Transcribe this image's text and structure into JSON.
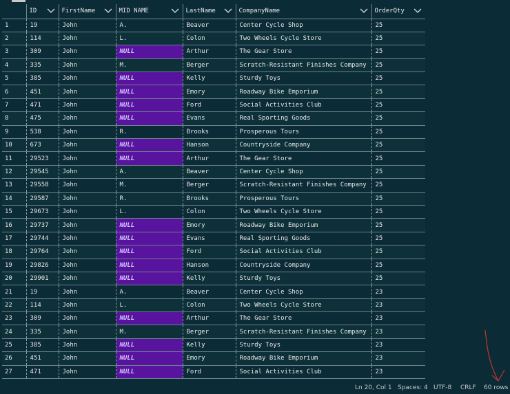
{
  "columns": [
    {
      "key": "num",
      "label": ""
    },
    {
      "key": "id",
      "label": "ID"
    },
    {
      "key": "first",
      "label": "FirstName"
    },
    {
      "key": "mid",
      "label": "MID NAME"
    },
    {
      "key": "last",
      "label": "LastName"
    },
    {
      "key": "company",
      "label": "CompanyName"
    },
    {
      "key": "qty",
      "label": "OrderQty"
    }
  ],
  "rows": [
    [
      "1",
      "19",
      "John",
      "A.",
      "Beaver",
      "Center Cycle Shop",
      "25"
    ],
    [
      "2",
      "114",
      "John",
      "L.",
      "Colon",
      "Two Wheels Cycle Store",
      "25"
    ],
    [
      "3",
      "309",
      "John",
      "NULL",
      "Arthur",
      "The Gear Store",
      "25"
    ],
    [
      "4",
      "335",
      "John",
      "M.",
      "Berger",
      "Scratch-Resistant Finishes Company",
      "25"
    ],
    [
      "5",
      "385",
      "John",
      "NULL",
      "Kelly",
      "Sturdy Toys",
      "25"
    ],
    [
      "6",
      "451",
      "John",
      "NULL",
      "Emory",
      "Roadway Bike Emporium",
      "25"
    ],
    [
      "7",
      "471",
      "John",
      "NULL",
      "Ford",
      "Social Activities Club",
      "25"
    ],
    [
      "8",
      "475",
      "John",
      "NULL",
      "Evans",
      "Real Sporting Goods",
      "25"
    ],
    [
      "9",
      "538",
      "John",
      "R.",
      "Brooks",
      "Prosperous Tours",
      "25"
    ],
    [
      "10",
      "673",
      "John",
      "NULL",
      "Hanson",
      "Countryside Company",
      "25"
    ],
    [
      "11",
      "29523",
      "John",
      "NULL",
      "Arthur",
      "The Gear Store",
      "25"
    ],
    [
      "12",
      "29545",
      "John",
      "A.",
      "Beaver",
      "Center Cycle Shop",
      "25"
    ],
    [
      "13",
      "29558",
      "John",
      "M.",
      "Berger",
      "Scratch-Resistant Finishes Company",
      "25"
    ],
    [
      "14",
      "29587",
      "John",
      "R.",
      "Brooks",
      "Prosperous Tours",
      "25"
    ],
    [
      "15",
      "29673",
      "John",
      "L.",
      "Colon",
      "Two Wheels Cycle Store",
      "25"
    ],
    [
      "16",
      "29737",
      "John",
      "NULL",
      "Emory",
      "Roadway Bike Emporium",
      "25"
    ],
    [
      "17",
      "29744",
      "John",
      "NULL",
      "Evans",
      "Real Sporting Goods",
      "25"
    ],
    [
      "18",
      "29764",
      "John",
      "NULL",
      "Ford",
      "Social Activities Club",
      "25"
    ],
    [
      "19",
      "29826",
      "John",
      "NULL",
      "Hanson",
      "Countryside Company",
      "25"
    ],
    [
      "20",
      "29901",
      "John",
      "NULL",
      "Kelly",
      "Sturdy Toys",
      "25"
    ],
    [
      "21",
      "19",
      "John",
      "A.",
      "Beaver",
      "Center Cycle Shop",
      "23"
    ],
    [
      "22",
      "114",
      "John",
      "L.",
      "Colon",
      "Two Wheels Cycle Store",
      "23"
    ],
    [
      "23",
      "309",
      "John",
      "NULL",
      "Arthur",
      "The Gear Store",
      "23"
    ],
    [
      "24",
      "335",
      "John",
      "M.",
      "Berger",
      "Scratch-Resistant Finishes Company",
      "23"
    ],
    [
      "25",
      "385",
      "John",
      "NULL",
      "Kelly",
      "Sturdy Toys",
      "23"
    ],
    [
      "26",
      "451",
      "John",
      "NULL",
      "Emory",
      "Roadway Bike Emporium",
      "23"
    ],
    [
      "27",
      "471",
      "John",
      "NULL",
      "Ford",
      "Social Activities Club",
      "23"
    ]
  ],
  "null_text": "NULL",
  "colors": {
    "background": "#0b2b36",
    "null_cell": "#58149e",
    "annotation_arrow": "#c0392b"
  },
  "icons": {
    "column_header": "chevron-down-icon"
  },
  "statusbar": {
    "position": "Ln 20, Col 1",
    "spaces": "Spaces: 4",
    "encoding": "UTF-8",
    "eol": "CRLF",
    "rows": "60 rows"
  }
}
